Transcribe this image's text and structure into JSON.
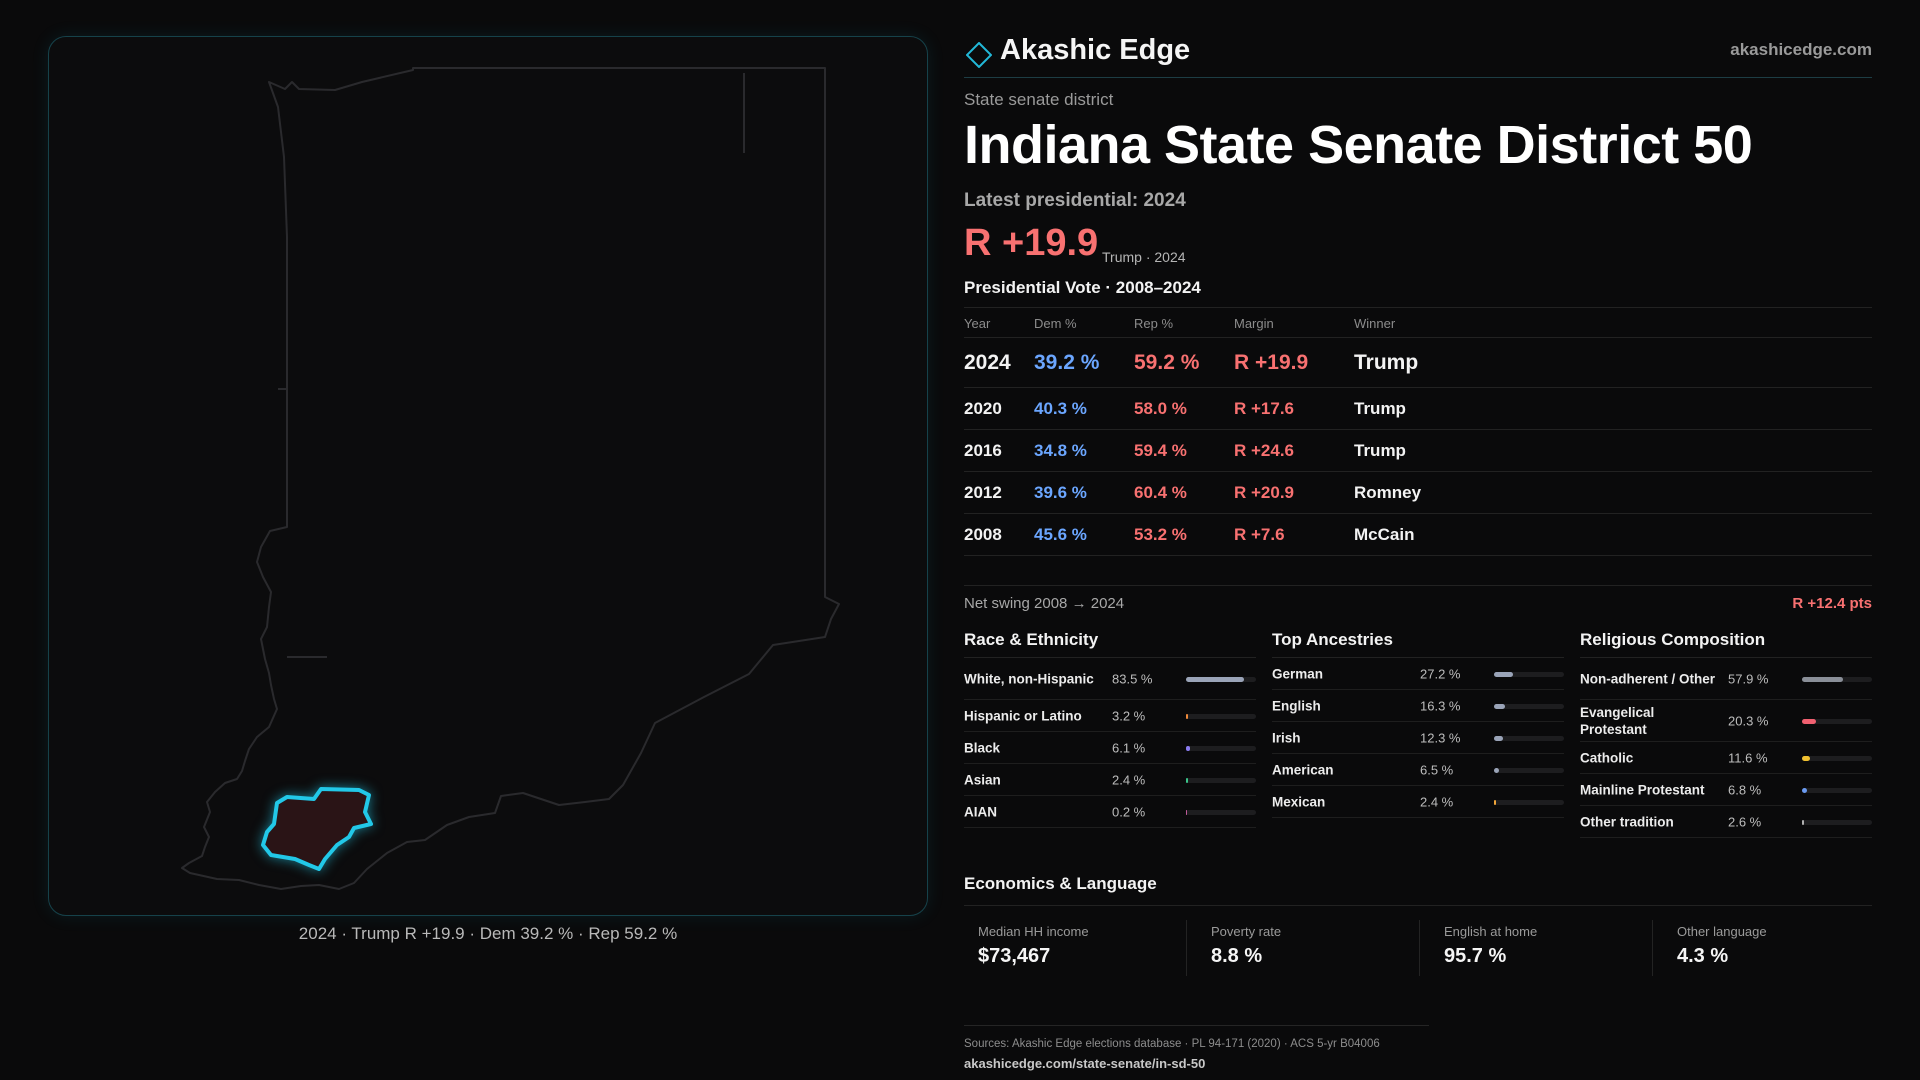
{
  "map": {
    "caption": "2024 · Trump R +19.9 · Dem 39.2 % · Rep 59.2 %",
    "outline_color": "#2a2a2d",
    "district_stroke": "#22c8e8",
    "district_fill": "#2a1416"
  },
  "brand": {
    "name": "Akashic Edge",
    "url": "akashicedge.com",
    "logo_icon": "diamond-icon"
  },
  "header": {
    "eyebrow": "State senate district",
    "title": "Indiana State Senate District 50",
    "latest_label": "Latest presidential: 2024",
    "margin": "R +19.9",
    "margin_sub": "Trump · 2024"
  },
  "vote_table": {
    "title": "Presidential Vote · 2008–2024",
    "headers": {
      "year": "Year",
      "dem": "Dem %",
      "rep": "Rep %",
      "margin": "Margin",
      "winner": "Winner"
    },
    "rows": [
      {
        "year": "2024",
        "dem": "39.2 %",
        "rep": "59.2 %",
        "margin": "R +19.9",
        "winner": "Trump"
      },
      {
        "year": "2020",
        "dem": "40.3 %",
        "rep": "58.0 %",
        "margin": "R +17.6",
        "winner": "Trump"
      },
      {
        "year": "2016",
        "dem": "34.8 %",
        "rep": "59.4 %",
        "margin": "R +24.6",
        "winner": "Trump"
      },
      {
        "year": "2012",
        "dem": "39.6 %",
        "rep": "60.4 %",
        "margin": "R +20.9",
        "winner": "Romney"
      },
      {
        "year": "2008",
        "dem": "45.6 %",
        "rep": "53.2 %",
        "margin": "R +7.6",
        "winner": "McCain"
      }
    ]
  },
  "swing": {
    "label": "Net swing 2008 → 2024",
    "value": "R +12.4 pts"
  },
  "race": {
    "title": "Race & Ethnicity",
    "items": [
      {
        "label": "White, non-Hispanic",
        "value": "83.5 %",
        "pct": 83.5,
        "color": "#9aa4b8"
      },
      {
        "label": "Hispanic or Latino",
        "value": "3.2 %",
        "pct": 3.2,
        "color": "#f08a3a"
      },
      {
        "label": "Black",
        "value": "6.1 %",
        "pct": 6.1,
        "color": "#8a7cf0"
      },
      {
        "label": "Asian",
        "value": "2.4 %",
        "pct": 2.4,
        "color": "#3ac48a"
      },
      {
        "label": "AIAN",
        "value": "0.2 %",
        "pct": 0.2,
        "color": "#c05a9a"
      }
    ]
  },
  "ancestry": {
    "title": "Top Ancestries",
    "items": [
      {
        "label": "German",
        "value": "27.2 %",
        "pct": 27.2,
        "color": "#9aa4b8"
      },
      {
        "label": "English",
        "value": "16.3 %",
        "pct": 16.3,
        "color": "#9aa4b8"
      },
      {
        "label": "Irish",
        "value": "12.3 %",
        "pct": 12.3,
        "color": "#9aa4b8"
      },
      {
        "label": "American",
        "value": "6.5 %",
        "pct": 6.5,
        "color": "#9aa4b8"
      },
      {
        "label": "Mexican",
        "value": "2.4 %",
        "pct": 2.4,
        "color": "#f0a63a"
      }
    ]
  },
  "religion": {
    "title": "Religious Composition",
    "items": [
      {
        "label": "Non-adherent / Other",
        "value": "57.9 %",
        "pct": 57.9,
        "color": "#8a8f98"
      },
      {
        "label": "Evangelical Protestant",
        "value": "20.3 %",
        "pct": 20.3,
        "color": "#f06070"
      },
      {
        "label": "Catholic",
        "value": "11.6 %",
        "pct": 11.6,
        "color": "#f0c030"
      },
      {
        "label": "Mainline Protestant",
        "value": "6.8 %",
        "pct": 6.8,
        "color": "#6a9af0"
      },
      {
        "label": "Other tradition",
        "value": "2.6 %",
        "pct": 2.6,
        "color": "#b0b0b0"
      }
    ]
  },
  "economics": {
    "title": "Economics & Language",
    "items": [
      {
        "label": "Median HH income",
        "value": "$73,467"
      },
      {
        "label": "Poverty rate",
        "value": "8.8 %"
      },
      {
        "label": "English at home",
        "value": "95.7 %"
      },
      {
        "label": "Other language",
        "value": "4.3 %"
      }
    ]
  },
  "sources": {
    "line1": "Sources: Akashic Edge elections database · PL 94-171 (2020) · ACS 5-yr B04006",
    "line2": "akashicedge.com/state-senate/in-sd-50"
  }
}
